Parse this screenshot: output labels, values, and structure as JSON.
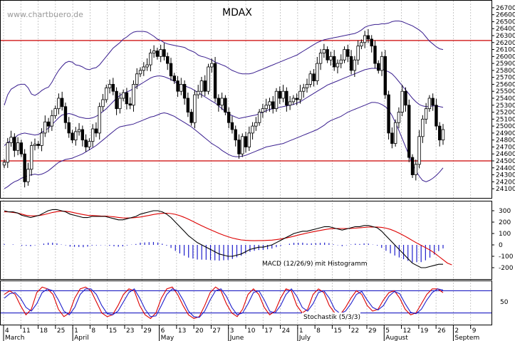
{
  "header": {
    "watermark": "www.chartbuero.de",
    "title": "MDAX"
  },
  "colors": {
    "candle_fill_up": "#ffffff",
    "candle_fill_down": "#000000",
    "support_resistance": "#cc0000",
    "bollinger": "#3a1f8f",
    "macd_line": "#000000",
    "signal_line": "#dd0000",
    "histogram": "#2020cc",
    "stoch_k": "#dd0000",
    "stoch_d": "#2020cc",
    "grid": "#bbbbbb",
    "hline_blue": "#0000bb"
  },
  "chart_data": [
    {
      "type": "candlestick",
      "title": "MDAX",
      "x_tick_labels": [
        "4",
        "11",
        "18",
        "25",
        "1",
        "8",
        "15",
        "23",
        "29",
        "6",
        "13",
        "20",
        "27",
        "3",
        "10",
        "17",
        "24",
        "1",
        "8",
        "15",
        "22",
        "29",
        "5",
        "12",
        "19",
        "26",
        "2",
        "9"
      ],
      "x_month_labels": [
        "March",
        "April",
        "May",
        "June",
        "July",
        "August",
        "Septem"
      ],
      "y_tick_labels": [
        "26700",
        "26600",
        "26500",
        "26400",
        "26300",
        "26200",
        "26100",
        "26000",
        "25900",
        "25800",
        "25700",
        "25600",
        "25500",
        "25400",
        "25300",
        "25200",
        "25100",
        "25000",
        "24900",
        "24800",
        "24700",
        "24600",
        "24500",
        "24400",
        "24300",
        "24200",
        "24100"
      ],
      "ylim": [
        24050,
        26750
      ],
      "horizontal_lines": [
        26230,
        24500
      ],
      "close": [
        24480,
        24760,
        24840,
        24650,
        24760,
        24600,
        24200,
        24380,
        24720,
        24740,
        24720,
        24900,
        25060,
        25000,
        25150,
        25250,
        25400,
        25280,
        25050,
        24900,
        24800,
        24920,
        24950,
        24800,
        24700,
        24780,
        24960,
        24900,
        25280,
        25380,
        25550,
        25600,
        25500,
        25250,
        25400,
        25480,
        25320,
        25300,
        25600,
        25750,
        25800,
        25850,
        25880,
        26050,
        26080,
        26000,
        26100,
        26000,
        25900,
        25720,
        25650,
        25500,
        25600,
        25400,
        25200,
        25050,
        25450,
        25500,
        25650,
        25500,
        25850,
        25900,
        25400,
        25300,
        25400,
        25200,
        25050,
        24950,
        24800,
        24600,
        24850,
        24700,
        24900,
        25000,
        25050,
        25200,
        25250,
        25300,
        25350,
        25250,
        25500,
        25400,
        25500,
        25300,
        25350,
        25400,
        25380,
        25500,
        25550,
        25600,
        25750,
        25650,
        25900,
        26050,
        26100,
        25950,
        26000,
        25850,
        25900,
        25950,
        26100,
        26000,
        25800,
        25950,
        26150,
        26200,
        26300,
        26250,
        26150,
        25900,
        25800,
        26000,
        25450,
        24900,
        24750,
        25050,
        25200,
        25500,
        25300,
        24550,
        24300,
        24450,
        24850,
        25100,
        25250,
        25400,
        25300,
        25000,
        24800,
        24950
      ],
      "bollinger_upper": [
        25300,
        25450,
        25530,
        25560,
        25590,
        25600,
        25600,
        25550,
        25460,
        25440,
        25470,
        25510,
        25540,
        25560,
        25630,
        25720,
        25800,
        25860,
        25910,
        25930,
        25920,
        25880,
        25870,
        25850,
        25820,
        25810,
        25830,
        25840,
        25880,
        25940,
        26000,
        26060,
        26120,
        26160,
        26200,
        26250,
        26280,
        26320,
        26350,
        26360,
        26360,
        26360,
        26350,
        26320,
        26290,
        26250,
        26230,
        26200,
        26180,
        26170,
        26160,
        26150,
        26140,
        26130,
        26100,
        26080,
        26060,
        26020,
        26000,
        25990,
        25970,
        25950,
        25920,
        25900,
        25880,
        25860,
        25830,
        25800,
        25780,
        25760,
        25750,
        25750,
        25750,
        25760,
        25780,
        25800,
        25820,
        25840,
        25860,
        25880,
        25900,
        25920,
        25940,
        25960,
        25980,
        26000,
        26020,
        26050,
        26080,
        26110,
        26140,
        26170,
        26200,
        26220,
        26240,
        26250,
        26260,
        26270,
        26280,
        26290,
        26300,
        26310,
        26320,
        26330,
        26350,
        26380,
        26420,
        26440,
        26450,
        26460,
        26460,
        26470,
        26470,
        26480,
        26500,
        26510,
        26510,
        26500,
        26480,
        26460,
        26440,
        26410,
        26380,
        26340,
        26280,
        26220,
        26180,
        26140,
        26110,
        26100
      ],
      "bollinger_middle": [
        24720,
        24760,
        24800,
        24830,
        24870,
        24890,
        24900,
        24890,
        24880,
        24870,
        24880,
        24910,
        24940,
        24970,
        25020,
        25070,
        25120,
        25160,
        25170,
        25180,
        25170,
        25150,
        25130,
        25120,
        25110,
        25110,
        25120,
        25140,
        25170,
        25210,
        25250,
        25300,
        25350,
        25400,
        25440,
        25470,
        25490,
        25510,
        25540,
        25570,
        25600,
        25630,
        25660,
        25690,
        25710,
        25720,
        25720,
        25710,
        25690,
        25670,
        25640,
        25610,
        25590,
        25580,
        25560,
        25540,
        25510,
        25480,
        25450,
        25420,
        25390,
        25360,
        25330,
        25290,
        25250,
        25210,
        25170,
        25150,
        25130,
        25110,
        25120,
        25130,
        25140,
        25150,
        25160,
        25180,
        25200,
        25220,
        25240,
        25250,
        25260,
        25270,
        25280,
        25290,
        25300,
        25310,
        25330,
        25350,
        25380,
        25410,
        25440,
        25470,
        25500,
        25530,
        25560,
        25590,
        25610,
        25630,
        25650,
        25670,
        25690,
        25710,
        25730,
        25750,
        25770,
        25790,
        25810,
        25820,
        25830,
        25830,
        25830,
        25820,
        25800,
        25780,
        25750,
        25700,
        25640,
        25580,
        25520,
        25460,
        25400,
        25350,
        25310,
        25290,
        25280,
        25280,
        25290,
        25290,
        25280,
        25270
      ],
      "bollinger_lower": [
        24100,
        24130,
        24170,
        24200,
        24220,
        24250,
        24270,
        24290,
        24300,
        24310,
        24300,
        24310,
        24330,
        24360,
        24400,
        24440,
        24480,
        24500,
        24520,
        24530,
        24540,
        24560,
        24580,
        24600,
        24630,
        24660,
        24690,
        24720,
        24760,
        24800,
        24840,
        24880,
        24920,
        24960,
        24990,
        25000,
        25010,
        25020,
        25030,
        25050,
        25070,
        25090,
        25110,
        25130,
        25140,
        25160,
        25180,
        25190,
        25180,
        25160,
        25140,
        25110,
        25080,
        25050,
        25020,
        24990,
        24950,
        24910,
        24870,
        24830,
        24790,
        24750,
        24720,
        24690,
        24650,
        24620,
        24590,
        24570,
        24560,
        24560,
        24570,
        24580,
        24600,
        24620,
        24640,
        24660,
        24680,
        24700,
        24710,
        24720,
        24730,
        24740,
        24750,
        24770,
        24790,
        24810,
        24830,
        24850,
        24870,
        24890,
        24910,
        24930,
        24950,
        24980,
        25010,
        25050,
        25080,
        25100,
        25120,
        25140,
        25170,
        25200,
        25220,
        25240,
        25260,
        25280,
        25300,
        25320,
        25340,
        25340,
        25330,
        25310,
        25280,
        25230,
        25150,
        25050,
        24940,
        24820,
        24700,
        24580,
        24450,
        24360,
        24280,
        24220,
        24200,
        24220,
        24250,
        24290,
        24340,
        24400
      ]
    },
    {
      "type": "line",
      "label": "MACD (12/26/9) mit Histogramm",
      "y_tick_labels": [
        "300",
        "200",
        "100",
        "0",
        "-100",
        "-200"
      ],
      "ylim": [
        -300,
        350
      ],
      "series": [
        {
          "values": [
            300,
            290,
            290,
            280,
            260,
            250,
            240,
            250,
            260,
            280,
            300,
            310,
            310,
            300,
            290,
            270,
            260,
            250,
            240,
            240,
            250,
            250,
            250,
            250,
            240,
            230,
            220,
            220,
            230,
            240,
            250,
            270,
            280,
            290,
            300,
            300,
            290,
            270,
            240,
            200,
            160,
            120,
            80,
            50,
            20,
            0,
            -20,
            -40,
            -60,
            -80,
            -90,
            -100,
            -100,
            -90,
            -80,
            -60,
            -40,
            -30,
            -20,
            -20,
            -10,
            0,
            20,
            40,
            60,
            80,
            100,
            110,
            120,
            120,
            130,
            140,
            150,
            160,
            160,
            150,
            140,
            130,
            140,
            150,
            160,
            160,
            170,
            170,
            160,
            150,
            120,
            80,
            40,
            0,
            -40,
            -80,
            -120,
            -160,
            -180,
            -200,
            -200,
            -190,
            -180,
            -170,
            -170
          ]
        },
        {
          "values": [
            290,
            290,
            285,
            280,
            270,
            260,
            255,
            255,
            258,
            265,
            275,
            285,
            292,
            296,
            295,
            290,
            282,
            274,
            266,
            260,
            258,
            256,
            254,
            253,
            250,
            246,
            241,
            237,
            236,
            237,
            240,
            245,
            252,
            259,
            267,
            273,
            277,
            278,
            275,
            268,
            257,
            242,
            225,
            206,
            187,
            168,
            150,
            133,
            116,
            100,
            85,
            72,
            60,
            51,
            44,
            40,
            38,
            37,
            38,
            38,
            40,
            42,
            46,
            52,
            59,
            67,
            76,
            86,
            95,
            104,
            112,
            120,
            127,
            134,
            140,
            143,
            144,
            144,
            144,
            145,
            147,
            150,
            153,
            156,
            157,
            157,
            154,
            147,
            136,
            121,
            103,
            83,
            62,
            39,
            17,
            -4,
            -24,
            -45,
            -70,
            -100,
            -130,
            -160,
            -175
          ]
        }
      ]
    },
    {
      "type": "line",
      "label": "Stochastik (5/3/3)",
      "y_tick_labels": [
        "50"
      ],
      "ylim": [
        0,
        100
      ],
      "horizontal_lines": [
        80,
        20
      ],
      "series": [
        {
          "values": [
            70,
            80,
            70,
            40,
            15,
            30,
            75,
            90,
            85,
            70,
            30,
            10,
            20,
            60,
            85,
            90,
            80,
            50,
            20,
            10,
            15,
            40,
            70,
            85,
            80,
            40,
            15,
            5,
            20,
            60,
            85,
            90,
            70,
            40,
            15,
            5,
            10,
            40,
            75,
            90,
            80,
            45,
            20,
            10,
            30,
            70,
            85,
            70,
            35,
            15,
            25,
            60,
            85,
            80,
            40,
            20,
            30,
            70,
            85,
            75,
            40,
            20,
            15,
            35,
            60,
            80,
            70,
            40,
            25,
            30,
            55,
            75,
            80,
            60,
            30,
            15,
            20,
            45,
            70,
            85,
            85,
            75
          ]
        },
        {
          "values": [
            60,
            72,
            75,
            60,
            35,
            25,
            45,
            75,
            85,
            80,
            55,
            25,
            15,
            35,
            70,
            85,
            85,
            70,
            40,
            18,
            15,
            25,
            50,
            75,
            85,
            60,
            30,
            10,
            12,
            40,
            70,
            85,
            80,
            55,
            25,
            10,
            8,
            25,
            55,
            80,
            85,
            65,
            35,
            15,
            20,
            45,
            75,
            80,
            55,
            25,
            20,
            40,
            70,
            85,
            65,
            35,
            25,
            45,
            75,
            80,
            60,
            30,
            18,
            25,
            45,
            70,
            78,
            55,
            35,
            28,
            40,
            65,
            78,
            72,
            45,
            22,
            18,
            30,
            55,
            75,
            85,
            82
          ]
        }
      ]
    }
  ]
}
